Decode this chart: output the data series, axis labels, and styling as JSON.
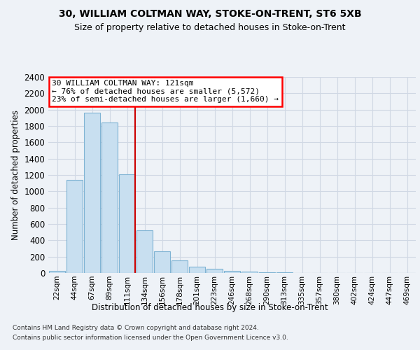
{
  "title": "30, WILLIAM COLTMAN WAY, STOKE-ON-TRENT, ST6 5XB",
  "subtitle": "Size of property relative to detached houses in Stoke-on-Trent",
  "xlabel": "Distribution of detached houses by size in Stoke-on-Trent",
  "ylabel": "Number of detached properties",
  "footnote1": "Contains HM Land Registry data © Crown copyright and database right 2024.",
  "footnote2": "Contains public sector information licensed under the Open Government Licence v3.0.",
  "bar_labels": [
    "22sqm",
    "44sqm",
    "67sqm",
    "89sqm",
    "111sqm",
    "134sqm",
    "156sqm",
    "178sqm",
    "201sqm",
    "223sqm",
    "246sqm",
    "268sqm",
    "290sqm",
    "313sqm",
    "335sqm",
    "357sqm",
    "380sqm",
    "402sqm",
    "424sqm",
    "447sqm",
    "469sqm"
  ],
  "bar_values": [
    30,
    1140,
    1960,
    1840,
    1210,
    520,
    265,
    155,
    80,
    48,
    30,
    18,
    10,
    5,
    3,
    2,
    1,
    1,
    0,
    0,
    0
  ],
  "bar_color": "#c8dff0",
  "bar_edge_color": "#7fb3d3",
  "marker_bin_index": 4,
  "marker_color": "#cc0000",
  "ylim": [
    0,
    2400
  ],
  "yticks": [
    0,
    200,
    400,
    600,
    800,
    1000,
    1200,
    1400,
    1600,
    1800,
    2000,
    2200,
    2400
  ],
  "annotation_text1": "30 WILLIAM COLTMAN WAY: 121sqm",
  "annotation_text2": "← 76% of detached houses are smaller (5,572)",
  "annotation_text3": "23% of semi-detached houses are larger (1,660) →",
  "bg_color": "#eef2f7",
  "grid_color": "#d0d8e4",
  "title_fontsize": 10,
  "subtitle_fontsize": 9
}
